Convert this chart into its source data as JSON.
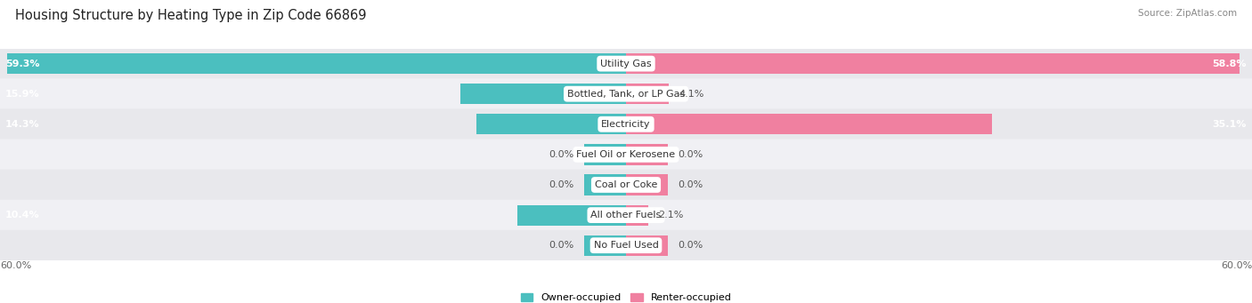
{
  "title": "Housing Structure by Heating Type in Zip Code 66869",
  "source": "Source: ZipAtlas.com",
  "categories": [
    "Utility Gas",
    "Bottled, Tank, or LP Gas",
    "Electricity",
    "Fuel Oil or Kerosene",
    "Coal or Coke",
    "All other Fuels",
    "No Fuel Used"
  ],
  "owner_values": [
    59.3,
    15.9,
    14.3,
    0.0,
    0.0,
    10.4,
    0.0
  ],
  "renter_values": [
    58.8,
    4.1,
    35.1,
    0.0,
    0.0,
    2.1,
    0.0
  ],
  "owner_color": "#4bbfbf",
  "renter_color": "#f080a0",
  "row_colors": [
    "#e8e8ec",
    "#f0f0f4"
  ],
  "max_value": 60.0,
  "x_tick_left": "60.0%",
  "x_tick_right": "60.0%",
  "owner_label": "Owner-occupied",
  "renter_label": "Renter-occupied",
  "title_fontsize": 10.5,
  "source_fontsize": 7.5,
  "label_fontsize": 8,
  "category_fontsize": 8,
  "tick_fontsize": 8,
  "stub_value": 4.0,
  "label_white_threshold": 5.0
}
